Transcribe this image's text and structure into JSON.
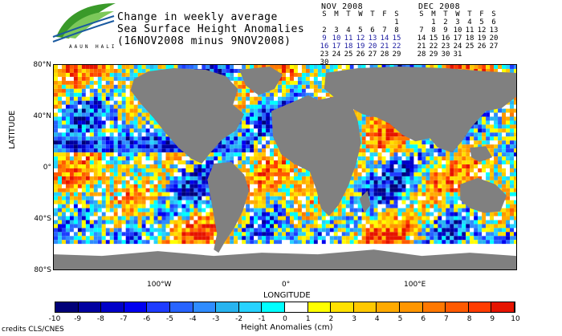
{
  "logo": {
    "name": "aaun-logo",
    "text": "AAUN HALI"
  },
  "title": {
    "line1": "Change in weekly average",
    "line2": "Sea Surface Height Anomalies",
    "line3": "(16NOV2008 minus 9NOV2008)"
  },
  "calendars": [
    {
      "title": "NOV 2008",
      "days": [
        "S",
        "M",
        "T",
        "W",
        "T",
        "F",
        "S"
      ],
      "weeks": [
        [
          "",
          "",
          "",
          "",
          "",
          "",
          "1"
        ],
        [
          "2",
          "3",
          "4",
          "5",
          "6",
          "7",
          "8"
        ],
        [
          "9",
          "10",
          "11",
          "12",
          "13",
          "14",
          "15"
        ],
        [
          "16",
          "17",
          "18",
          "19",
          "20",
          "21",
          "22"
        ],
        [
          "23",
          "24",
          "25",
          "26",
          "27",
          "28",
          "29"
        ],
        [
          "30",
          "",
          "",
          "",
          "",
          "",
          ""
        ]
      ],
      "highlight_weeks": [
        2,
        3
      ]
    },
    {
      "title": "DEC 2008",
      "days": [
        "S",
        "M",
        "T",
        "W",
        "T",
        "F",
        "S"
      ],
      "weeks": [
        [
          "",
          "1",
          "2",
          "3",
          "4",
          "5",
          "6"
        ],
        [
          "7",
          "8",
          "9",
          "10",
          "11",
          "12",
          "13"
        ],
        [
          "14",
          "15",
          "16",
          "17",
          "18",
          "19",
          "20"
        ],
        [
          "21",
          "22",
          "23",
          "24",
          "25",
          "26",
          "27"
        ],
        [
          "28",
          "29",
          "30",
          "31",
          "",
          "",
          ""
        ]
      ],
      "highlight_weeks": []
    }
  ],
  "axes": {
    "ylabel": "LATITUDE",
    "xlabel": "LONGITUDE",
    "yticks": [
      "80°N",
      "40°N",
      "0°",
      "40°S",
      "80°S"
    ],
    "xticks": [
      "100°W",
      "0°",
      "100°E"
    ]
  },
  "colorbar": {
    "title": "Height Anomalies (cm)",
    "ticks": [
      "-10",
      "-9",
      "-8",
      "-7",
      "-6",
      "-5",
      "-4",
      "-3",
      "-2",
      "-1",
      "0",
      "1",
      "2",
      "3",
      "4",
      "5",
      "6",
      "7",
      "8",
      "9",
      "10"
    ],
    "colors": [
      "#000078",
      "#0000a0",
      "#0000c8",
      "#0000f0",
      "#1e3cff",
      "#2864ff",
      "#2f8cff",
      "#28b4f0",
      "#28d2ff",
      "#00ffff",
      "#ffffff",
      "#ffff00",
      "#ffe100",
      "#ffc800",
      "#ffaa00",
      "#ff9600",
      "#ff7800",
      "#ff5a00",
      "#ff3c00",
      "#e61400"
    ],
    "land_color": "#808080",
    "ice_color": "#ffffff"
  },
  "credits": "credits CLS/CNES"
}
